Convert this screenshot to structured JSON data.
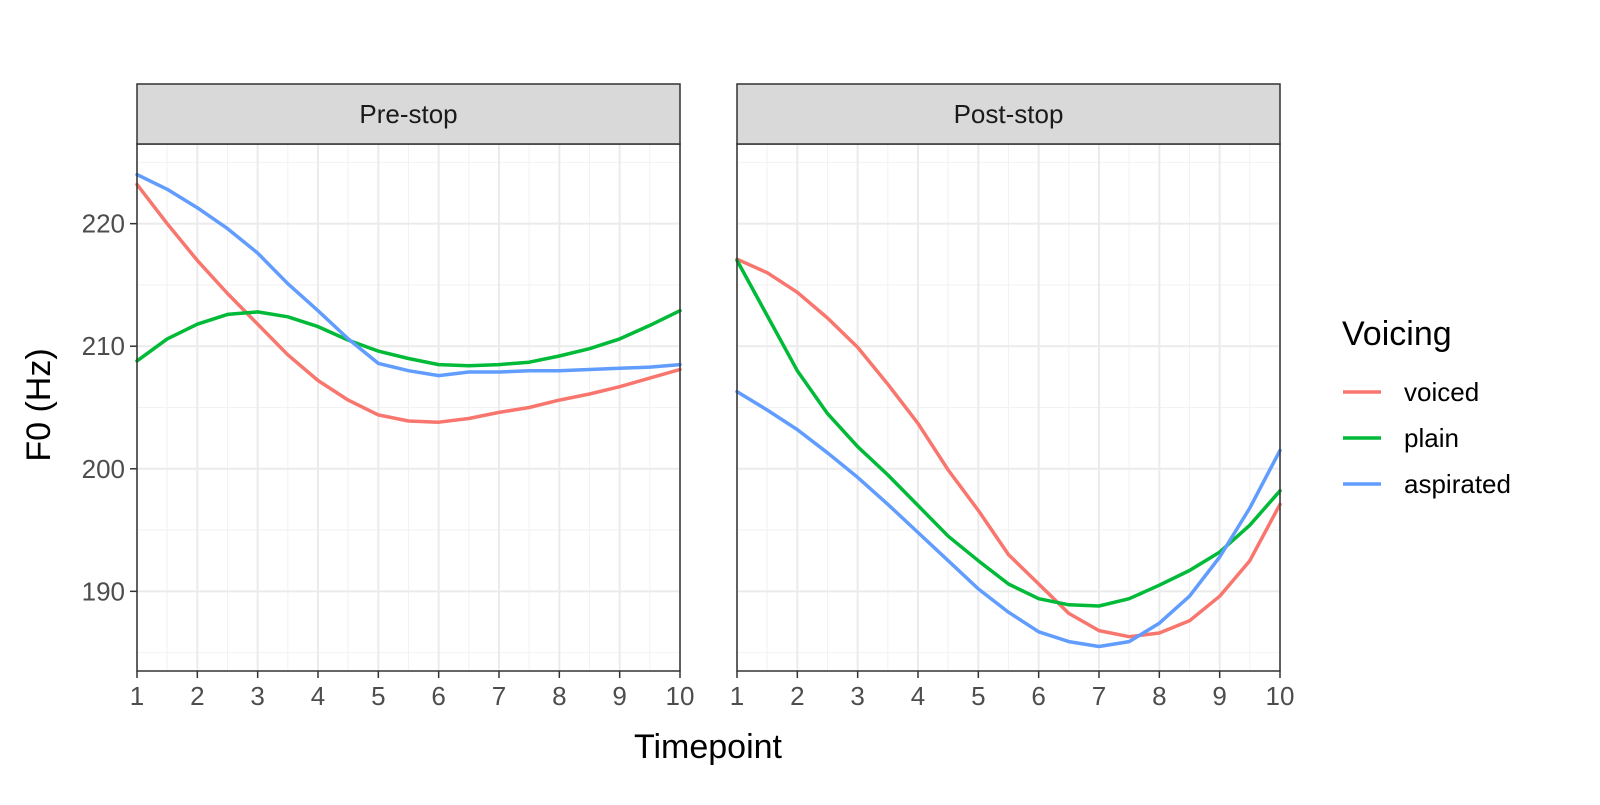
{
  "chart_data": {
    "type": "line",
    "xlabel": "Timepoint",
    "ylabel": "F0 (Hz)",
    "xlim": [
      1,
      10
    ],
    "ylim": [
      183.5,
      226.5
    ],
    "x_ticks": [
      1,
      2,
      3,
      4,
      5,
      6,
      7,
      8,
      9,
      10
    ],
    "y_ticks": [
      190,
      200,
      210,
      220
    ],
    "grid": true,
    "legend": {
      "title": "Voicing",
      "position": "right",
      "entries": [
        "voiced",
        "plain",
        "aspirated"
      ]
    },
    "colors": {
      "voiced": "#F8766D",
      "plain": "#00BA38",
      "aspirated": "#619CFF"
    },
    "panels": [
      {
        "label": "Pre-stop",
        "series": [
          {
            "name": "voiced",
            "x": [
              1,
              1.5,
              2,
              2.5,
              3,
              3.5,
              4,
              4.5,
              5,
              5.5,
              6,
              6.5,
              7,
              7.5,
              8,
              8.5,
              9,
              9.5,
              10
            ],
            "values": [
              223.2,
              220.0,
              217.0,
              214.3,
              211.8,
              209.3,
              207.2,
              205.6,
              204.4,
              203.9,
              203.8,
              204.1,
              204.6,
              205.0,
              205.6,
              206.1,
              206.7,
              207.4,
              208.1
            ]
          },
          {
            "name": "plain",
            "x": [
              1,
              1.5,
              2,
              2.5,
              3,
              3.5,
              4,
              4.5,
              5,
              5.5,
              6,
              6.5,
              7,
              7.5,
              8,
              8.5,
              9,
              9.5,
              10
            ],
            "values": [
              208.8,
              210.6,
              211.8,
              212.6,
              212.8,
              212.4,
              211.6,
              210.5,
              209.6,
              209.0,
              208.5,
              208.4,
              208.5,
              208.7,
              209.2,
              209.8,
              210.6,
              211.7,
              212.9
            ]
          },
          {
            "name": "aspirated",
            "x": [
              1,
              1.5,
              2,
              2.5,
              3,
              3.5,
              4,
              4.5,
              5,
              5.5,
              6,
              6.5,
              7,
              7.5,
              8,
              8.5,
              9,
              9.5,
              10
            ],
            "values": [
              224.0,
              222.8,
              221.3,
              219.6,
              217.6,
              215.1,
              212.9,
              210.6,
              208.6,
              208.0,
              207.6,
              207.9,
              207.9,
              208.0,
              208.0,
              208.1,
              208.2,
              208.3,
              208.5
            ]
          }
        ]
      },
      {
        "label": "Post-stop",
        "series": [
          {
            "name": "voiced",
            "x": [
              1,
              1.5,
              2,
              2.5,
              3,
              3.5,
              4,
              4.5,
              5,
              5.5,
              6,
              6.5,
              7,
              7.5,
              8,
              8.5,
              9,
              9.5,
              10
            ],
            "values": [
              217.1,
              216.0,
              214.4,
              212.3,
              209.9,
              206.9,
              203.7,
              199.9,
              196.6,
              193.0,
              190.6,
              188.2,
              186.8,
              186.3,
              186.6,
              187.6,
              189.6,
              192.5,
              197.1
            ]
          },
          {
            "name": "plain",
            "x": [
              1,
              1.5,
              2,
              2.5,
              3,
              3.5,
              4,
              4.5,
              5,
              5.5,
              6,
              6.5,
              7,
              7.5,
              8,
              8.5,
              9,
              9.5,
              10
            ],
            "values": [
              217.0,
              212.5,
              208.0,
              204.5,
              201.8,
              199.5,
              197.0,
              194.5,
              192.5,
              190.6,
              189.4,
              188.9,
              188.8,
              189.4,
              190.5,
              191.7,
              193.2,
              195.4,
              198.2
            ]
          },
          {
            "name": "aspirated",
            "x": [
              1,
              1.5,
              2,
              2.5,
              3,
              3.5,
              4,
              4.5,
              5,
              5.5,
              6,
              6.5,
              7,
              7.5,
              8,
              8.5,
              9,
              9.5,
              10
            ],
            "values": [
              206.3,
              204.8,
              203.2,
              201.3,
              199.3,
              197.1,
              194.8,
              192.5,
              190.2,
              188.3,
              186.7,
              185.9,
              185.5,
              185.9,
              187.4,
              189.6,
              192.8,
              196.8,
              201.5
            ]
          }
        ]
      }
    ]
  }
}
